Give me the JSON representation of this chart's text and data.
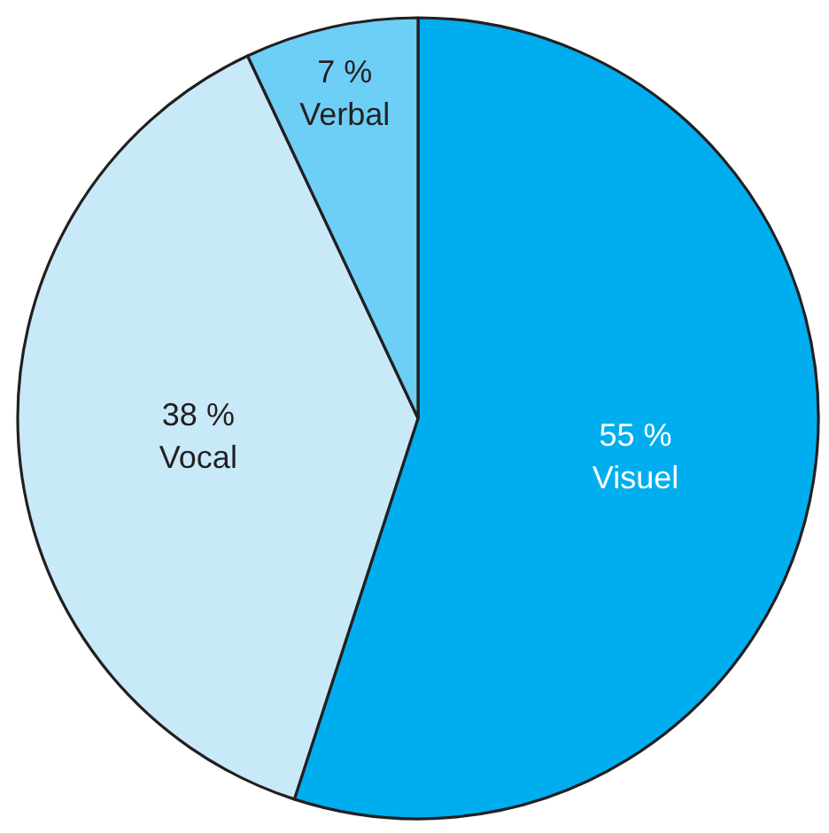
{
  "chart_data": {
    "type": "pie",
    "categories": [
      "Visuel",
      "Vocal",
      "Verbal"
    ],
    "values": [
      55,
      38,
      7
    ],
    "colors": [
      "#00aeef",
      "#c8e9f8",
      "#6dcff6"
    ],
    "value_labels": [
      "55 %",
      "38 %",
      "7 %"
    ]
  }
}
